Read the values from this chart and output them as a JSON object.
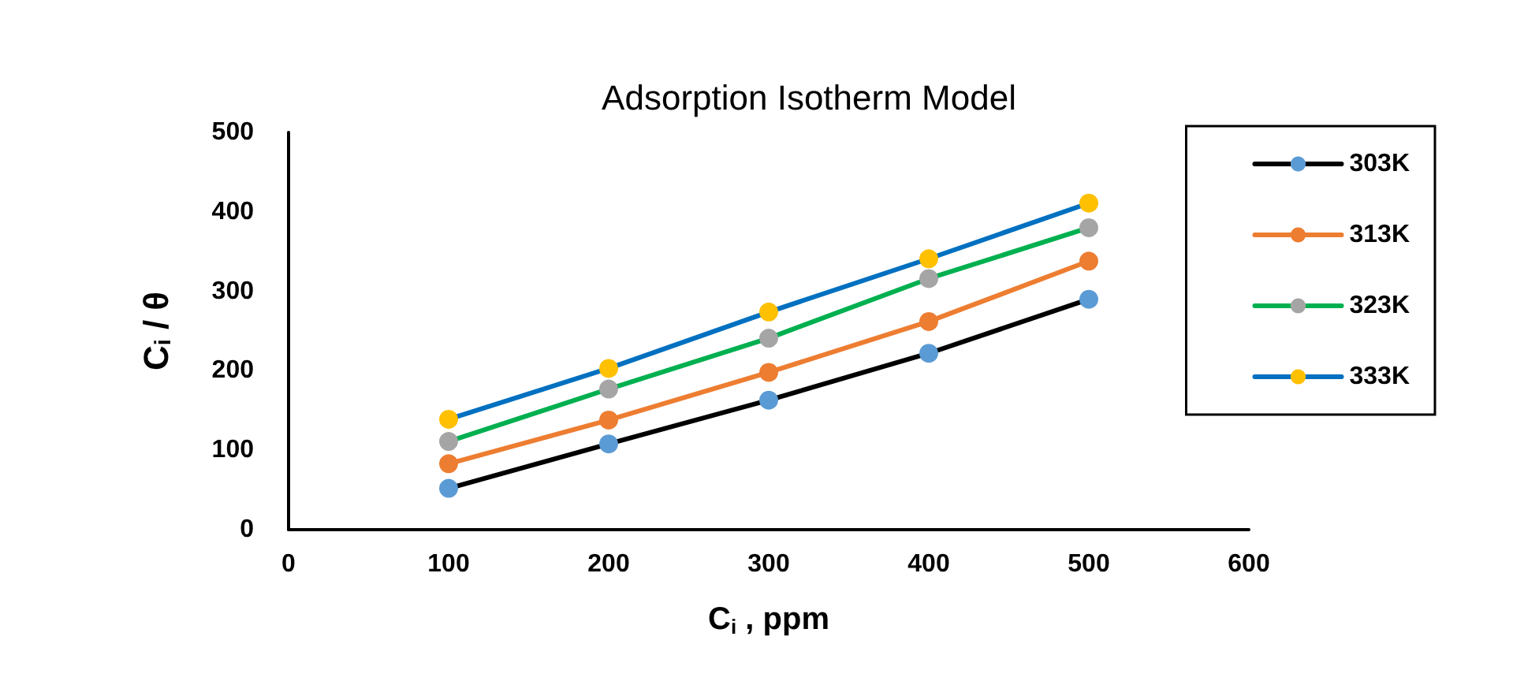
{
  "chart_data": {
    "type": "line",
    "title": "Adsorption Isotherm Model",
    "xlabel": "C$_{i}$ , ppm",
    "ylabel": "C$_{i}$ / θ",
    "x": [
      100,
      200,
      300,
      400,
      500
    ],
    "series": [
      {
        "name": "303K",
        "color": "#000000",
        "colors": [
          "#5b9bd5",
          "#5b9bd5",
          "#5b9bd5",
          "#5b9bd5",
          "#5b9bd5"
        ],
        "values": [
          52,
          108,
          163,
          222,
          290
        ]
      },
      {
        "name": "313K",
        "color": "#ed7d31",
        "colors": [
          "#ed7d31",
          "#ed7d31",
          "#ed7d31",
          "#ed7d31",
          "#ed7d31"
        ],
        "values": [
          83,
          138,
          198,
          262,
          338
        ]
      },
      {
        "name": "323K",
        "color": "#00b050",
        "colors": [
          "#a5a5a5",
          "#a5a5a5",
          "#a5a5a5",
          "#a5a5a5",
          "#a5a5a5"
        ],
        "values": [
          111,
          177,
          241,
          316,
          380
        ]
      },
      {
        "name": "333K",
        "color": "#0070c0",
        "colors": [
          "#ffc000",
          "#ffc000",
          "#ffc000",
          "#ffc000",
          "#ffc000"
        ],
        "values": [
          139,
          203,
          274,
          341,
          411
        ]
      }
    ],
    "xlim": [
      0,
      600
    ],
    "xticks": [
      0,
      100,
      200,
      300,
      400,
      500,
      600
    ],
    "ylim": [
      0,
      500
    ],
    "yticks": [
      0,
      100,
      200,
      300,
      400,
      500
    ],
    "grid": false,
    "legend": "right",
    "marker": "circle",
    "line_style": "solid"
  }
}
